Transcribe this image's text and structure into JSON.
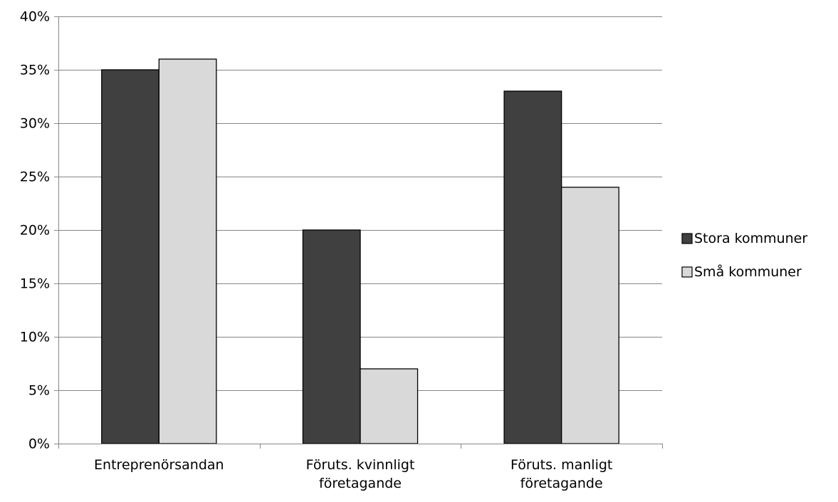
{
  "chart_data": {
    "type": "bar",
    "title": "",
    "xlabel": "",
    "ylabel": "",
    "categories": [
      [
        "Entreprenörsandan"
      ],
      [
        "Föruts. kvinnligt",
        "företagande"
      ],
      [
        "Föruts. manligt",
        "företagande"
      ]
    ],
    "series": [
      {
        "name": "Stora kommuner",
        "values": [
          35,
          20,
          33
        ],
        "color": "#404040"
      },
      {
        "name": "Små kommuner",
        "values": [
          36,
          7,
          24
        ],
        "color": "#d9d9d9"
      }
    ],
    "ylim": [
      0,
      40
    ],
    "ytick_step": 5,
    "ytick_format": "percent",
    "grid": true,
    "legend_position": "right",
    "colors": {
      "axis": "#868686",
      "grid": "#868686",
      "bar_border": "#000000"
    }
  }
}
